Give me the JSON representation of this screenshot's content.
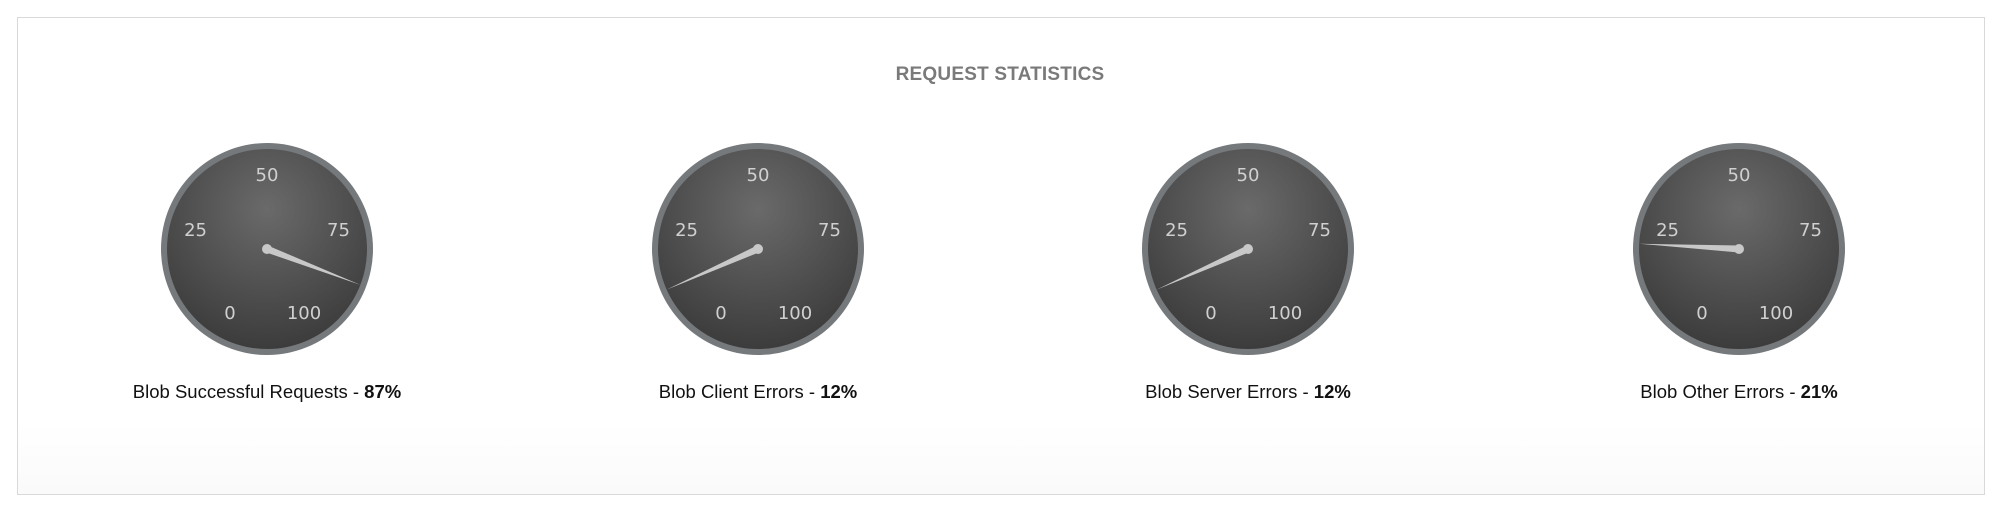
{
  "chart_data": {
    "type": "gauge",
    "title": "REQUEST STATISTICS",
    "scale": {
      "min": 0,
      "max": 100,
      "tick_labels": [
        "0",
        "25",
        "50",
        "75",
        "100"
      ]
    },
    "colors": {
      "face": "#3c3c3c",
      "face_highlight": "#6a6a6a",
      "rim": "#75797c",
      "needle": "#c8c8c8",
      "tick_text": "#d0d0d0"
    },
    "gauges": [
      {
        "name": "Blob Successful Requests",
        "value": 87,
        "display": "87%"
      },
      {
        "name": "Blob Client Errors",
        "value": 12,
        "display": "12%"
      },
      {
        "name": "Blob Server Errors",
        "value": 12,
        "display": "12%"
      },
      {
        "name": "Blob Other Errors",
        "value": 21,
        "display": "21%"
      }
    ]
  }
}
